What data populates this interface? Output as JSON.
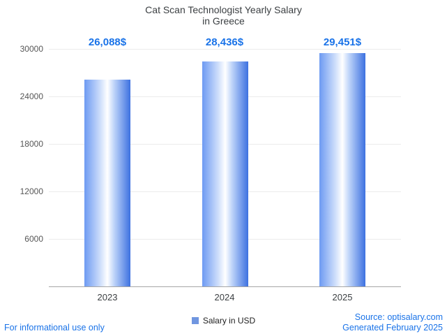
{
  "title": {
    "line1": "Cat Scan Technologist Yearly Salary",
    "line2": "in Greece"
  },
  "chart_data": {
    "type": "bar",
    "title": "Cat Scan Technologist Yearly Salary in Greece",
    "categories": [
      "2023",
      "2024",
      "2025"
    ],
    "values": [
      26088,
      28436,
      29451
    ],
    "value_labels": [
      "26,088$",
      "28,436$",
      "29,451$"
    ],
    "series_name": "Salary in USD",
    "xlabel": "",
    "ylabel": "",
    "ylim": [
      0,
      30000
    ],
    "yticks": [
      6000,
      12000,
      18000,
      24000,
      30000
    ],
    "grid": true,
    "legend_position": "bottom"
  },
  "legend": {
    "label": "Salary in USD"
  },
  "footer": {
    "disclaimer": "For informational use only",
    "source": "Source: optisalary.com",
    "generated": "Generated February 2025"
  },
  "colors": {
    "accent_blue": "#1a73e8",
    "bar_left": "#6d9af2",
    "bar_mid": "#ffffff",
    "bar_right": "#3d71e0",
    "legend_swatch": "#7096e0"
  }
}
